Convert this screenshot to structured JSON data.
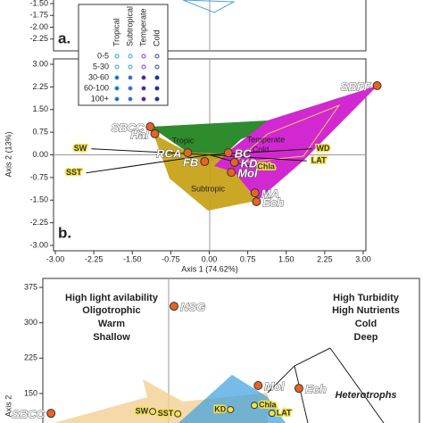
{
  "chart_data": [
    {
      "type": "scatter",
      "panel_label": "a.",
      "xlim": [
        -3,
        3
      ],
      "ylim": [
        -2.5,
        -1.4
      ],
      "yticks": [
        {
          "value": -1.5,
          "label": "-1.50"
        },
        {
          "value": -1.75,
          "label": "-1.75"
        },
        {
          "value": -2.0,
          "label": "-2.00"
        },
        {
          "value": -2.25,
          "label": "-2.25"
        }
      ],
      "legend": {
        "columns": [
          "Tropical",
          "Subtropical",
          "Temperate",
          "Cold"
        ],
        "rows": [
          "0-5",
          "5-30",
          "30-60",
          "60-100",
          "100+"
        ]
      }
    },
    {
      "type": "scatter",
      "panel_label": "b.",
      "xlabel": "Axis 1 (74.62%)",
      "ylabel": "Axis 2 (13%)",
      "xlim": [
        -3,
        3
      ],
      "ylim": [
        -3,
        3
      ],
      "xticks": [
        {
          "value": -3,
          "label": "-3.00"
        },
        {
          "value": -2.25,
          "label": "-2.25"
        },
        {
          "value": -1.5,
          "label": "-1.50"
        },
        {
          "value": -0.75,
          "label": "-0.75"
        },
        {
          "value": 0,
          "label": "0.00"
        },
        {
          "value": 0.75,
          "label": "0.75"
        },
        {
          "value": 1.5,
          "label": "1.50"
        },
        {
          "value": 2.25,
          "label": "2.25"
        },
        {
          "value": 3,
          "label": "3.00"
        }
      ],
      "yticks": [
        {
          "value": 3,
          "label": "3.00"
        },
        {
          "value": 2.25,
          "label": "2.25"
        },
        {
          "value": 1.5,
          "label": "1.50"
        },
        {
          "value": 0.75,
          "label": "0.75"
        },
        {
          "value": 0,
          "label": "0.00"
        },
        {
          "value": -0.75,
          "label": "-0.75"
        },
        {
          "value": -1.5,
          "label": "-1.50"
        },
        {
          "value": -2.25,
          "label": "-2.25"
        },
        {
          "value": -3,
          "label": "-3.00"
        }
      ],
      "groups": [
        "Tropic",
        "Temperate",
        "Cold",
        "Subtropic"
      ],
      "sites": {
        "labels": [
          "SBFF",
          "SBCC",
          "Hal",
          "RCA",
          "BC",
          "FB",
          "Mol",
          "KD",
          "MA",
          "Ech"
        ],
        "x": [
          3.27,
          -1.15,
          -1.06,
          -0.42,
          0.37,
          -0.09,
          0.43,
          0.49,
          0.89,
          0.92
        ],
        "y": [
          2.29,
          0.93,
          0.7,
          0.07,
          0.07,
          -0.22,
          -0.58,
          -0.25,
          -1.26,
          -1.55
        ],
        "color": "#e8641e"
      },
      "vectors": {
        "labels": [
          "SW",
          "SST",
          "WD",
          "LAT",
          "Chla"
        ],
        "x": [
          -2.3,
          -2.4,
          2.0,
          1.9,
          0.85
        ],
        "y": [
          0.2,
          -0.6,
          0.2,
          -0.2,
          -0.4
        ],
        "color": "#f2e14c"
      }
    },
    {
      "type": "scatter",
      "ylabel": "Axis 2",
      "xlim": [
        -2,
        4
      ],
      "ylim": [
        90,
        400
      ],
      "yticks": [
        375,
        300,
        225,
        150
      ],
      "annotations": [
        "High light avilability",
        "Oligotrophic",
        "Warm",
        "Shallow",
        "High Turbidity",
        "High Nutrients",
        "Cold",
        "Deep",
        "Heterotrophs"
      ],
      "sites": {
        "labels": [
          "NSG",
          "Mol",
          "Ech",
          "SBCC"
        ],
        "x": [
          0.09,
          1.43,
          2.08,
          -1.87
        ],
        "y": [
          335,
          167,
          161,
          108
        ],
        "color": "#e8641e"
      },
      "vectors": {
        "labels": [
          "SW",
          "SST",
          "KD",
          "Chla",
          "LAT"
        ],
        "x": [
          -0.25,
          0.15,
          0.99,
          1.37,
          1.65
        ],
        "y": [
          112,
          107,
          116,
          125,
          108
        ],
        "color": "#f2e14c"
      }
    }
  ]
}
